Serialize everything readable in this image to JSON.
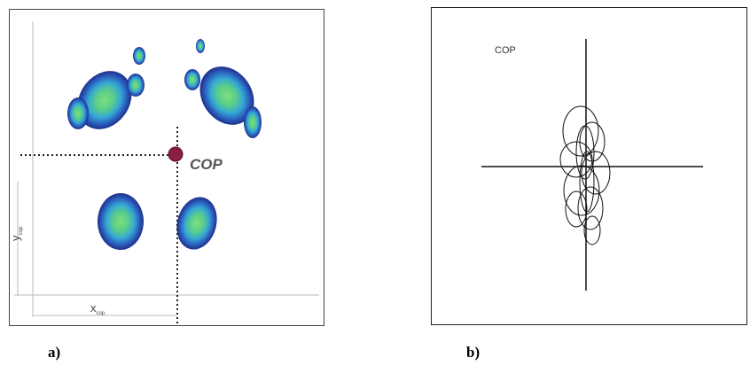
{
  "panel_a": {
    "cop_label": "COP",
    "x_label": "x",
    "x_subscript": "cop",
    "y_label": "y",
    "y_subscript": "cop",
    "caption": "a)"
  },
  "panel_b": {
    "cop_label": "COP",
    "caption": "b)"
  }
}
